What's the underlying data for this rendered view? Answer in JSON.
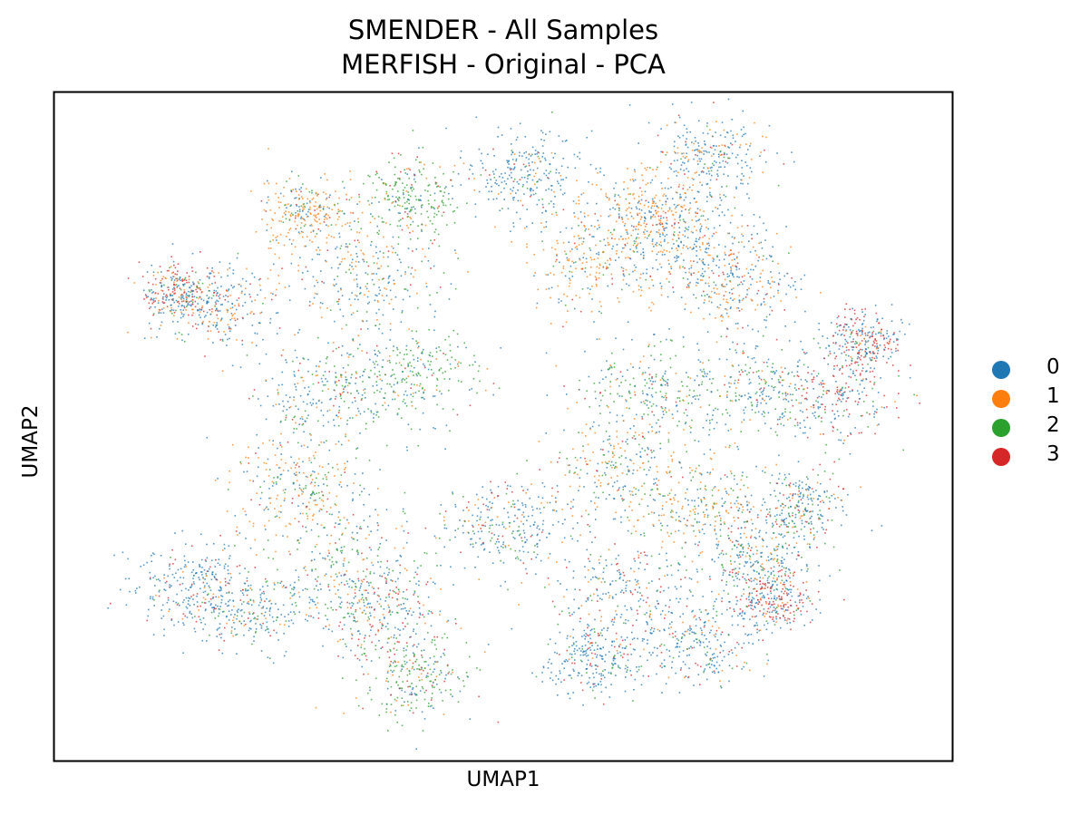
{
  "chart_data": {
    "type": "scatter",
    "title": "SMENDER - All Samples",
    "subtitle": "MERFISH - Original - PCA",
    "xlabel": "UMAP1",
    "ylabel": "UMAP2",
    "xticks": [],
    "yticks": [],
    "xlim": [
      0,
      100
    ],
    "ylim": [
      0,
      100
    ],
    "grid": false,
    "legend_position": "right",
    "series": [
      {
        "name": "0",
        "color": "#1f77b4"
      },
      {
        "name": "1",
        "color": "#ff7f0e"
      },
      {
        "name": "2",
        "color": "#2ca02c"
      },
      {
        "name": "3",
        "color": "#d62728"
      }
    ],
    "clusters": [
      {
        "x": 52,
        "y": 88,
        "r": 6,
        "mix": [
          0.8,
          0.08,
          0.04,
          0.08
        ]
      },
      {
        "x": 39,
        "y": 84,
        "r": 6,
        "mix": [
          0.15,
          0.1,
          0.65,
          0.1
        ]
      },
      {
        "x": 28,
        "y": 82,
        "r": 5,
        "mix": [
          0.2,
          0.65,
          0.1,
          0.05
        ]
      },
      {
        "x": 35,
        "y": 72,
        "r": 8,
        "mix": [
          0.5,
          0.3,
          0.15,
          0.05
        ]
      },
      {
        "x": 18,
        "y": 68,
        "r": 6,
        "mix": [
          0.55,
          0.25,
          0.05,
          0.15
        ]
      },
      {
        "x": 14,
        "y": 70,
        "r": 4,
        "mix": [
          0.4,
          0.15,
          0.05,
          0.4
        ]
      },
      {
        "x": 40,
        "y": 58,
        "r": 7,
        "mix": [
          0.25,
          0.1,
          0.6,
          0.05
        ]
      },
      {
        "x": 30,
        "y": 55,
        "r": 7,
        "mix": [
          0.55,
          0.15,
          0.2,
          0.1
        ]
      },
      {
        "x": 27,
        "y": 41,
        "r": 7,
        "mix": [
          0.35,
          0.4,
          0.15,
          0.1
        ]
      },
      {
        "x": 33,
        "y": 30,
        "r": 8,
        "mix": [
          0.4,
          0.2,
          0.3,
          0.1
        ]
      },
      {
        "x": 15,
        "y": 26,
        "r": 6,
        "mix": [
          0.75,
          0.05,
          0.05,
          0.15
        ]
      },
      {
        "x": 22,
        "y": 23,
        "r": 6,
        "mix": [
          0.55,
          0.15,
          0.15,
          0.15
        ]
      },
      {
        "x": 36,
        "y": 22,
        "r": 6,
        "mix": [
          0.45,
          0.1,
          0.15,
          0.3
        ]
      },
      {
        "x": 40,
        "y": 13,
        "r": 6,
        "mix": [
          0.25,
          0.1,
          0.55,
          0.1
        ]
      },
      {
        "x": 50,
        "y": 35,
        "r": 6,
        "mix": [
          0.65,
          0.1,
          0.15,
          0.1
        ]
      },
      {
        "x": 60,
        "y": 75,
        "r": 7,
        "mix": [
          0.3,
          0.55,
          0.1,
          0.05
        ]
      },
      {
        "x": 70,
        "y": 78,
        "r": 8,
        "mix": [
          0.65,
          0.25,
          0.05,
          0.05
        ]
      },
      {
        "x": 66,
        "y": 82,
        "r": 6,
        "mix": [
          0.3,
          0.55,
          0.05,
          0.1
        ]
      },
      {
        "x": 73,
        "y": 90,
        "r": 6,
        "mix": [
          0.6,
          0.25,
          0.05,
          0.1
        ]
      },
      {
        "x": 76,
        "y": 72,
        "r": 6,
        "mix": [
          0.45,
          0.35,
          0.05,
          0.15
        ]
      },
      {
        "x": 66,
        "y": 55,
        "r": 7,
        "mix": [
          0.4,
          0.15,
          0.4,
          0.05
        ]
      },
      {
        "x": 78,
        "y": 56,
        "r": 7,
        "mix": [
          0.55,
          0.1,
          0.3,
          0.05
        ]
      },
      {
        "x": 87,
        "y": 55,
        "r": 6,
        "mix": [
          0.45,
          0.05,
          0.15,
          0.35
        ]
      },
      {
        "x": 90,
        "y": 63,
        "r": 4,
        "mix": [
          0.5,
          0.05,
          0.05,
          0.4
        ]
      },
      {
        "x": 63,
        "y": 43,
        "r": 7,
        "mix": [
          0.3,
          0.35,
          0.3,
          0.05
        ]
      },
      {
        "x": 73,
        "y": 38,
        "r": 7,
        "mix": [
          0.35,
          0.4,
          0.2,
          0.05
        ]
      },
      {
        "x": 63,
        "y": 25,
        "r": 8,
        "mix": [
          0.55,
          0.15,
          0.1,
          0.2
        ]
      },
      {
        "x": 72,
        "y": 18,
        "r": 6,
        "mix": [
          0.7,
          0.1,
          0.1,
          0.1
        ]
      },
      {
        "x": 60,
        "y": 15,
        "r": 5,
        "mix": [
          0.75,
          0.05,
          0.1,
          0.1
        ]
      },
      {
        "x": 78,
        "y": 30,
        "r": 6,
        "mix": [
          0.6,
          0.1,
          0.2,
          0.1
        ]
      },
      {
        "x": 83,
        "y": 38,
        "r": 5,
        "mix": [
          0.55,
          0.1,
          0.15,
          0.2
        ]
      },
      {
        "x": 80,
        "y": 24,
        "r": 4,
        "mix": [
          0.35,
          0.1,
          0.05,
          0.5
        ]
      }
    ]
  },
  "legend": {
    "items": [
      {
        "label": "0",
        "color": "#1f77b4"
      },
      {
        "label": "1",
        "color": "#ff7f0e"
      },
      {
        "label": "2",
        "color": "#2ca02c"
      },
      {
        "label": "3",
        "color": "#d62728"
      }
    ]
  }
}
